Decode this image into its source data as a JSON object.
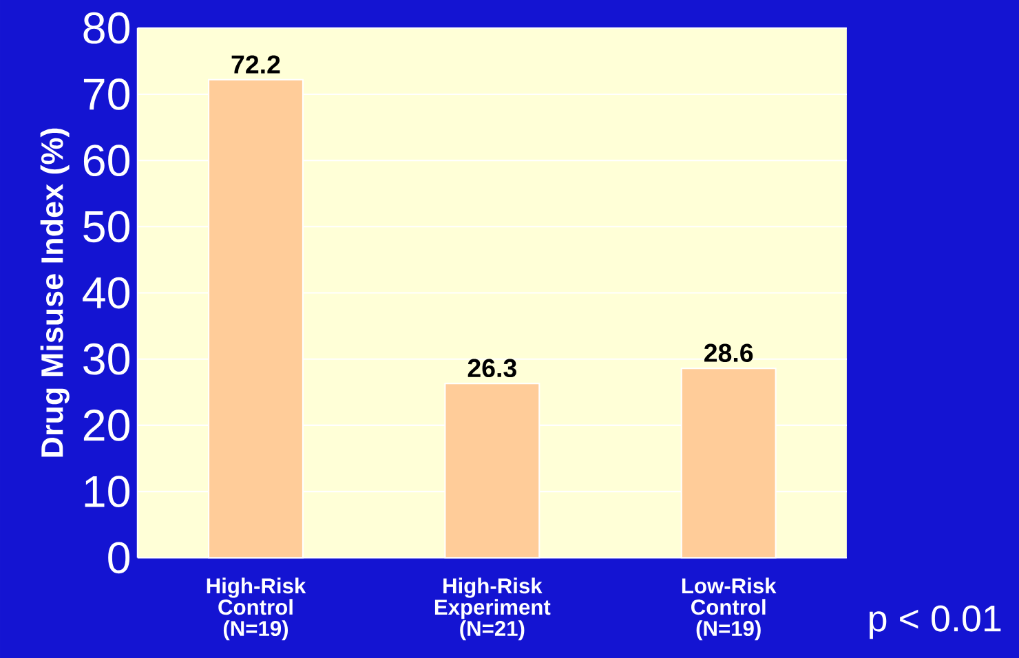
{
  "chart_data": {
    "type": "bar",
    "ylabel": "Drug Misuse Index (%)",
    "categories": [
      "High-Risk Control (N=19)",
      "High-Risk Experiment (N=21)",
      "Low-Risk Control (N=19)"
    ],
    "values": [
      72.2,
      26.3,
      28.6
    ],
    "color": "#ffcc99",
    "ylim": [
      0,
      80
    ],
    "yticks": [
      0,
      10,
      20,
      30,
      40,
      50,
      60,
      70,
      80
    ],
    "grid": "y",
    "data_labels": true,
    "annotations": [
      "p < 0.01"
    ]
  }
}
